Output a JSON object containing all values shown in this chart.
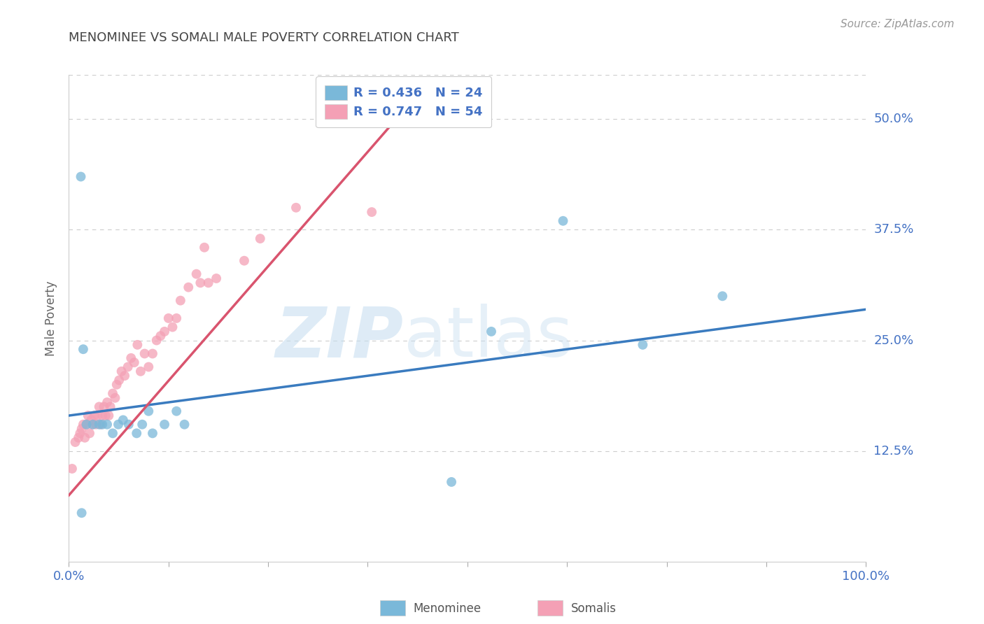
{
  "title": "MENOMINEE VS SOMALI MALE POVERTY CORRELATION CHART",
  "source": "Source: ZipAtlas.com",
  "ylabel": "Male Poverty",
  "xlim": [
    0.0,
    1.0
  ],
  "ylim": [
    0.0,
    0.55
  ],
  "xticks": [
    0.0,
    0.125,
    0.25,
    0.375,
    0.5,
    0.625,
    0.75,
    0.875,
    1.0
  ],
  "xticklabels": [
    "0.0%",
    "",
    "",
    "",
    "",
    "",
    "",
    "",
    "100.0%"
  ],
  "ytick_positions": [
    0.125,
    0.25,
    0.375,
    0.5
  ],
  "yticklabels": [
    "12.5%",
    "25.0%",
    "37.5%",
    "50.0%"
  ],
  "menominee_color": "#7ab8d9",
  "somali_color": "#f4a0b5",
  "menominee_line_color": "#3a7bbf",
  "somali_line_color": "#d9546e",
  "legend_R_menominee": "R = 0.436",
  "legend_N_menominee": "N = 24",
  "legend_R_somali": "R = 0.747",
  "legend_N_somali": "N = 54",
  "grid_color": "#cccccc",
  "background_color": "#ffffff",
  "title_color": "#444444",
  "axis_label_color": "#666666",
  "tick_color": "#4472c4",
  "watermark_zip": "ZIP",
  "watermark_atlas": "atlas",
  "menominee_x": [
    0.015,
    0.018,
    0.022,
    0.03,
    0.038,
    0.042,
    0.048,
    0.055,
    0.062,
    0.068,
    0.075,
    0.085,
    0.092,
    0.1,
    0.105,
    0.12,
    0.135,
    0.145,
    0.48,
    0.53,
    0.62,
    0.72,
    0.82,
    0.016
  ],
  "menominee_y": [
    0.435,
    0.24,
    0.155,
    0.155,
    0.155,
    0.155,
    0.155,
    0.145,
    0.155,
    0.16,
    0.155,
    0.145,
    0.155,
    0.17,
    0.145,
    0.155,
    0.17,
    0.155,
    0.09,
    0.26,
    0.385,
    0.245,
    0.3,
    0.055
  ],
  "somali_x": [
    0.004,
    0.008,
    0.012,
    0.014,
    0.016,
    0.018,
    0.02,
    0.022,
    0.024,
    0.026,
    0.028,
    0.03,
    0.032,
    0.034,
    0.036,
    0.038,
    0.04,
    0.042,
    0.044,
    0.046,
    0.048,
    0.05,
    0.052,
    0.055,
    0.058,
    0.06,
    0.063,
    0.066,
    0.07,
    0.074,
    0.078,
    0.082,
    0.086,
    0.09,
    0.095,
    0.1,
    0.105,
    0.11,
    0.115,
    0.12,
    0.125,
    0.13,
    0.135,
    0.14,
    0.15,
    0.16,
    0.165,
    0.17,
    0.175,
    0.185,
    0.22,
    0.24,
    0.285,
    0.38
  ],
  "somali_y": [
    0.105,
    0.135,
    0.14,
    0.145,
    0.15,
    0.155,
    0.14,
    0.155,
    0.165,
    0.145,
    0.16,
    0.155,
    0.165,
    0.155,
    0.165,
    0.175,
    0.155,
    0.165,
    0.175,
    0.165,
    0.18,
    0.165,
    0.175,
    0.19,
    0.185,
    0.2,
    0.205,
    0.215,
    0.21,
    0.22,
    0.23,
    0.225,
    0.245,
    0.215,
    0.235,
    0.22,
    0.235,
    0.25,
    0.255,
    0.26,
    0.275,
    0.265,
    0.275,
    0.295,
    0.31,
    0.325,
    0.315,
    0.355,
    0.315,
    0.32,
    0.34,
    0.365,
    0.4,
    0.395
  ],
  "menominee_trendline_x": [
    0.0,
    1.0
  ],
  "menominee_trendline_y": [
    0.165,
    0.285
  ],
  "somali_trendline_x": [
    0.0,
    0.43
  ],
  "somali_trendline_y": [
    0.075,
    0.52
  ]
}
